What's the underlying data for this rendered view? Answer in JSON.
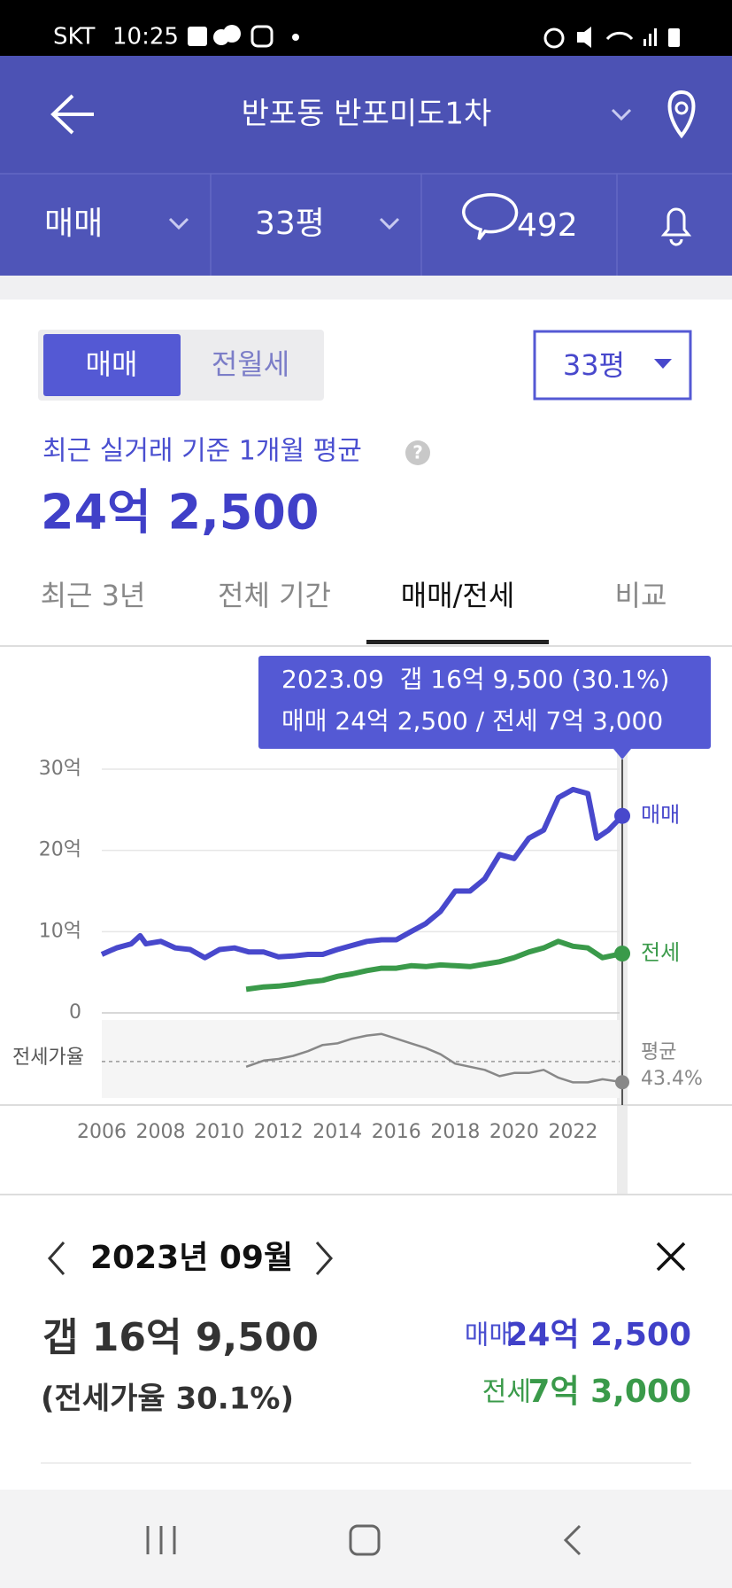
{
  "status_bar": {
    "carrier": "SKT",
    "time": "10:25"
  },
  "header": {
    "title": "반포동 반포미도1차"
  },
  "filters": {
    "deal_type": "매매",
    "size": "33평",
    "comments": 492
  },
  "toggle": {
    "options": [
      "매매",
      "전월세"
    ],
    "size": "33평"
  },
  "summary": {
    "caption": "최근 실거래 기준 1개월 평균",
    "price": "24억 2,500"
  },
  "tabs": [
    "최근 3년",
    "전체 기간",
    "매매/전세",
    "비교"
  ],
  "chart_data": {
    "type": "line",
    "tooltip": [
      "2023.09  갭 16억 9,500 (30.1%)",
      "매매 24억 2,500 / 전세 7억 3,000"
    ],
    "xlim": [
      2006,
      2024
    ],
    "xticks": [
      2006,
      2008,
      2010,
      2012,
      2014,
      2016,
      2018,
      2020,
      2022
    ],
    "ylim": [
      0,
      30
    ],
    "yticks": [
      0,
      {
        "value": 10,
        "label": "10억"
      },
      {
        "value": 20,
        "label": "20억"
      },
      {
        "value": 30,
        "label": "30억"
      }
    ],
    "y2lim": [
      20,
      70
    ],
    "grid": true,
    "selected_x": 2023.67,
    "average": {
      "label": "평균",
      "value": 43.4,
      "value_label": "43.4%"
    },
    "series": [
      {
        "name": "매매",
        "color": "#4848cc",
        "x": [
          2006.0,
          2006.5,
          2007.0,
          2007.3,
          2007.5,
          2008.0,
          2008.5,
          2009.0,
          2009.5,
          2010.0,
          2010.5,
          2011.0,
          2011.5,
          2012.0,
          2012.5,
          2013.0,
          2013.5,
          2014.0,
          2014.5,
          2015.0,
          2015.5,
          2016.0,
          2016.5,
          2017.0,
          2017.5,
          2018.0,
          2018.5,
          2019.0,
          2019.5,
          2020.0,
          2020.5,
          2021.0,
          2021.5,
          2022.0,
          2022.5,
          2022.8,
          2023.2,
          2023.67
        ],
        "values": [
          7.2,
          8.0,
          8.5,
          9.5,
          8.5,
          8.8,
          8.0,
          7.8,
          6.8,
          7.8,
          8.0,
          7.5,
          7.5,
          6.9,
          7.0,
          7.2,
          7.2,
          7.8,
          8.3,
          8.8,
          9.0,
          9.0,
          10.0,
          11.0,
          12.5,
          15.0,
          15.0,
          16.5,
          19.5,
          19.0,
          21.5,
          22.5,
          26.5,
          27.5,
          27.0,
          21.5,
          22.5,
          24.25
        ]
      },
      {
        "name": "전세",
        "color": "#3a9a4a",
        "x": [
          2010.9,
          2011.5,
          2012.0,
          2012.5,
          2013.0,
          2013.5,
          2014.0,
          2014.5,
          2015.0,
          2015.5,
          2016.0,
          2016.5,
          2017.0,
          2017.5,
          2018.0,
          2018.5,
          2019.0,
          2019.5,
          2020.0,
          2020.5,
          2021.0,
          2021.5,
          2022.0,
          2022.5,
          2023.0,
          2023.67
        ],
        "values": [
          2.9,
          3.2,
          3.3,
          3.5,
          3.8,
          4.0,
          4.5,
          4.8,
          5.2,
          5.5,
          5.5,
          5.8,
          5.7,
          5.9,
          5.8,
          5.7,
          6.0,
          6.3,
          6.8,
          7.5,
          8.0,
          8.8,
          8.2,
          8.0,
          6.8,
          7.3
        ]
      },
      {
        "name": "전세가율",
        "color": "#888888",
        "axis": "y2",
        "x": [
          2010.9,
          2011.5,
          2012.0,
          2012.5,
          2013.0,
          2013.5,
          2014.0,
          2014.5,
          2015.0,
          2015.5,
          2016.0,
          2016.5,
          2017.0,
          2017.5,
          2018.0,
          2018.5,
          2019.0,
          2019.5,
          2020.0,
          2020.5,
          2021.0,
          2021.5,
          2022.0,
          2022.5,
          2023.0,
          2023.67
        ],
        "values": [
          40,
          44,
          45,
          47,
          50,
          54,
          55,
          58,
          60,
          61,
          58,
          55,
          52,
          48,
          42,
          40,
          38,
          34,
          36,
          36,
          38,
          33,
          30,
          30,
          32,
          30.1
        ]
      }
    ]
  },
  "detail": {
    "month": "2023년 09월",
    "gap": "갭 16억 9,500",
    "ratio": "(전세가율 30.1%)",
    "sale_label": "매매",
    "sale": "24억 2,500",
    "jeonse_label": "전세",
    "jeonse": "7억 3,000"
  }
}
